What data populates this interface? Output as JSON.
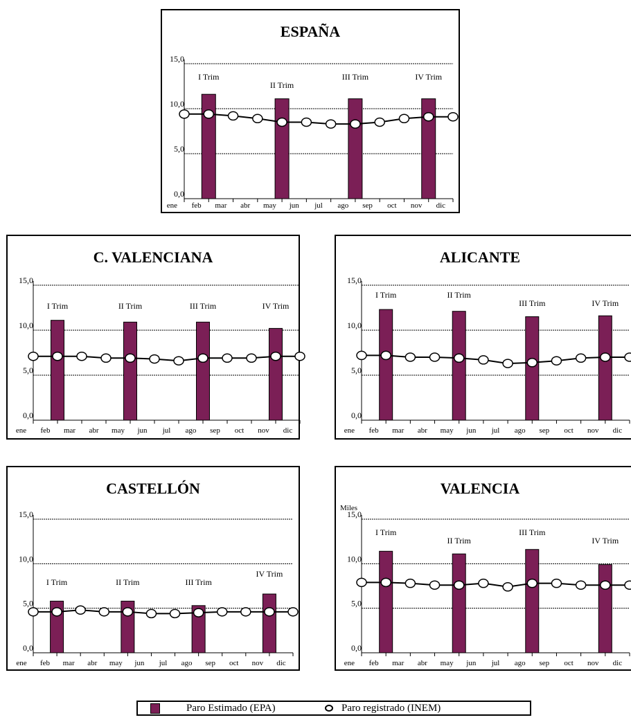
{
  "colors": {
    "bar": "#7b1f56",
    "line": "#000000",
    "marker_fill": "#ffffff"
  },
  "legend": {
    "bar_label": "Paro Estimado (EPA)",
    "line_label": "Paro registrado (INEM)"
  },
  "chart_data": [
    {
      "type": "bar",
      "title": "ESPAÑA",
      "xlabel": "",
      "ylabel": "",
      "ylim": [
        0,
        15
      ],
      "yticks": [
        "0,0",
        "5,0",
        "10,0",
        "15,0"
      ],
      "categories": [
        "ene",
        "feb",
        "mar",
        "abr",
        "may",
        "jun",
        "jul",
        "ago",
        "sep",
        "oct",
        "nov",
        "dic"
      ],
      "grid": true,
      "series": [
        {
          "name": "Paro Estimado (EPA)",
          "type": "bar",
          "points": [
            {
              "month": "feb",
              "value": 11.6,
              "label": "I Trim"
            },
            {
              "month": "may",
              "value": 11.1,
              "label": "II Trim"
            },
            {
              "month": "ago",
              "value": 11.1,
              "label": "III Trim"
            },
            {
              "month": "nov",
              "value": 11.1,
              "label": "IV Trim"
            }
          ]
        },
        {
          "name": "Paro registrado (INEM)",
          "type": "line",
          "values": [
            9.4,
            9.4,
            9.2,
            8.9,
            8.5,
            8.5,
            8.3,
            8.3,
            8.5,
            8.9,
            9.1,
            9.1
          ]
        }
      ]
    },
    {
      "type": "bar",
      "title": "C. VALENCIANA",
      "xlabel": "",
      "ylabel": "",
      "ylim": [
        0,
        15
      ],
      "yticks": [
        "0,0",
        "5,0",
        "10,0",
        "15,0"
      ],
      "categories": [
        "ene",
        "feb",
        "mar",
        "abr",
        "may",
        "jun",
        "jul",
        "ago",
        "sep",
        "oct",
        "nov",
        "dic"
      ],
      "grid": true,
      "series": [
        {
          "name": "Paro Estimado (EPA)",
          "type": "bar",
          "points": [
            {
              "month": "feb",
              "value": 11.1,
              "label": "I Trim"
            },
            {
              "month": "may",
              "value": 10.9,
              "label": "II Trim"
            },
            {
              "month": "ago",
              "value": 10.9,
              "label": "III Trim"
            },
            {
              "month": "nov",
              "value": 10.2,
              "label": "IV Trim"
            }
          ]
        },
        {
          "name": "Paro registrado (INEM)",
          "type": "line",
          "values": [
            7.1,
            7.1,
            7.1,
            6.9,
            6.9,
            6.8,
            6.6,
            6.9,
            6.9,
            6.9,
            7.1,
            7.1
          ]
        }
      ]
    },
    {
      "type": "bar",
      "title": "ALICANTE",
      "xlabel": "",
      "ylabel": "",
      "ylim": [
        0,
        15
      ],
      "yticks": [
        "0,0",
        "5,0",
        "10,0",
        "15,0"
      ],
      "categories": [
        "ene",
        "feb",
        "mar",
        "abr",
        "may",
        "jun",
        "jul",
        "ago",
        "sep",
        "oct",
        "nov",
        "dic"
      ],
      "grid": true,
      "series": [
        {
          "name": "Paro Estimado (EPA)",
          "type": "bar",
          "points": [
            {
              "month": "feb",
              "value": 12.3,
              "label": "I Trim"
            },
            {
              "month": "may",
              "value": 12.1,
              "label": "II Trim"
            },
            {
              "month": "ago",
              "value": 11.5,
              "label": "III Trim"
            },
            {
              "month": "nov",
              "value": 11.6,
              "label": "IV Trim"
            }
          ]
        },
        {
          "name": "Paro registrado (INEM)",
          "type": "line",
          "values": [
            7.2,
            7.2,
            7.0,
            7.0,
            6.9,
            6.7,
            6.3,
            6.4,
            6.6,
            6.9,
            7.0,
            7.0
          ]
        }
      ]
    },
    {
      "type": "bar",
      "title": "CASTELLÓN",
      "xlabel": "",
      "ylabel": "",
      "ylim": [
        0,
        15
      ],
      "yticks": [
        "0,0",
        "5,0",
        "10,0",
        "15,0"
      ],
      "categories": [
        "ene",
        "feb",
        "mar",
        "abr",
        "may",
        "jun",
        "jul",
        "ago",
        "sep",
        "oct",
        "nov",
        "dic"
      ],
      "grid": true,
      "series": [
        {
          "name": "Paro Estimado (EPA)",
          "type": "bar",
          "points": [
            {
              "month": "feb",
              "value": 5.8,
              "label": "I Trim"
            },
            {
              "month": "may",
              "value": 5.8,
              "label": "II Trim"
            },
            {
              "month": "ago",
              "value": 5.3,
              "label": "III Trim"
            },
            {
              "month": "nov",
              "value": 6.6,
              "label": "IV Trim"
            }
          ]
        },
        {
          "name": "Paro registrado (INEM)",
          "type": "line",
          "values": [
            4.6,
            4.6,
            4.8,
            4.6,
            4.6,
            4.4,
            4.4,
            4.5,
            4.6,
            4.6,
            4.6,
            4.6
          ]
        }
      ]
    },
    {
      "type": "bar",
      "title": "VALENCIA",
      "xlabel": "",
      "ylabel": "Miles",
      "ylim": [
        0,
        15
      ],
      "yticks": [
        "0,0",
        "5,0",
        "10,0",
        "15,0"
      ],
      "categories": [
        "ene",
        "feb",
        "mar",
        "abr",
        "may",
        "jun",
        "jul",
        "ago",
        "sep",
        "oct",
        "nov",
        "dic"
      ],
      "grid": true,
      "series": [
        {
          "name": "Paro Estimado (EPA)",
          "type": "bar",
          "points": [
            {
              "month": "feb",
              "value": 11.4,
              "label": "I Trim"
            },
            {
              "month": "may",
              "value": 11.1,
              "label": "II Trim"
            },
            {
              "month": "ago",
              "value": 11.6,
              "label": "III Trim"
            },
            {
              "month": "nov",
              "value": 9.9,
              "label": "IV Trim"
            }
          ]
        },
        {
          "name": "Paro registrado (INEM)",
          "type": "line",
          "values": [
            7.9,
            7.9,
            7.8,
            7.6,
            7.6,
            7.8,
            7.4,
            7.8,
            7.8,
            7.6,
            7.6,
            7.6
          ]
        }
      ]
    }
  ]
}
